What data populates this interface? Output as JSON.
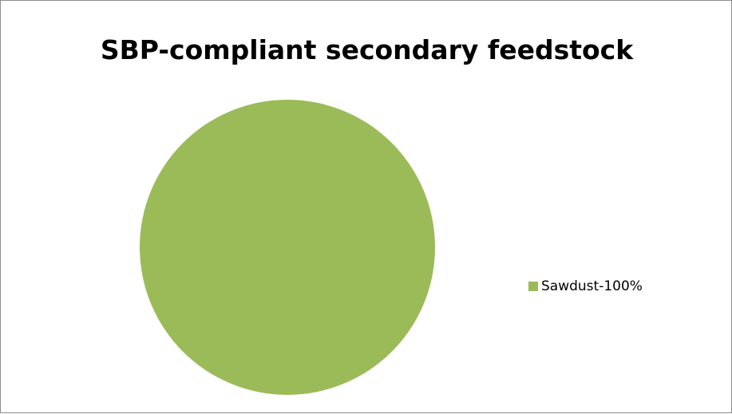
{
  "chart_data": {
    "type": "pie",
    "title": "SBP-compliant secondary feedstock",
    "series": [
      {
        "values": [
          100
        ]
      }
    ],
    "categories": [
      "Sawdust"
    ],
    "slices": [
      {
        "label": "Sawdust-100%",
        "value": 100,
        "color": "#9bbb59"
      }
    ],
    "legend_position": "right"
  }
}
